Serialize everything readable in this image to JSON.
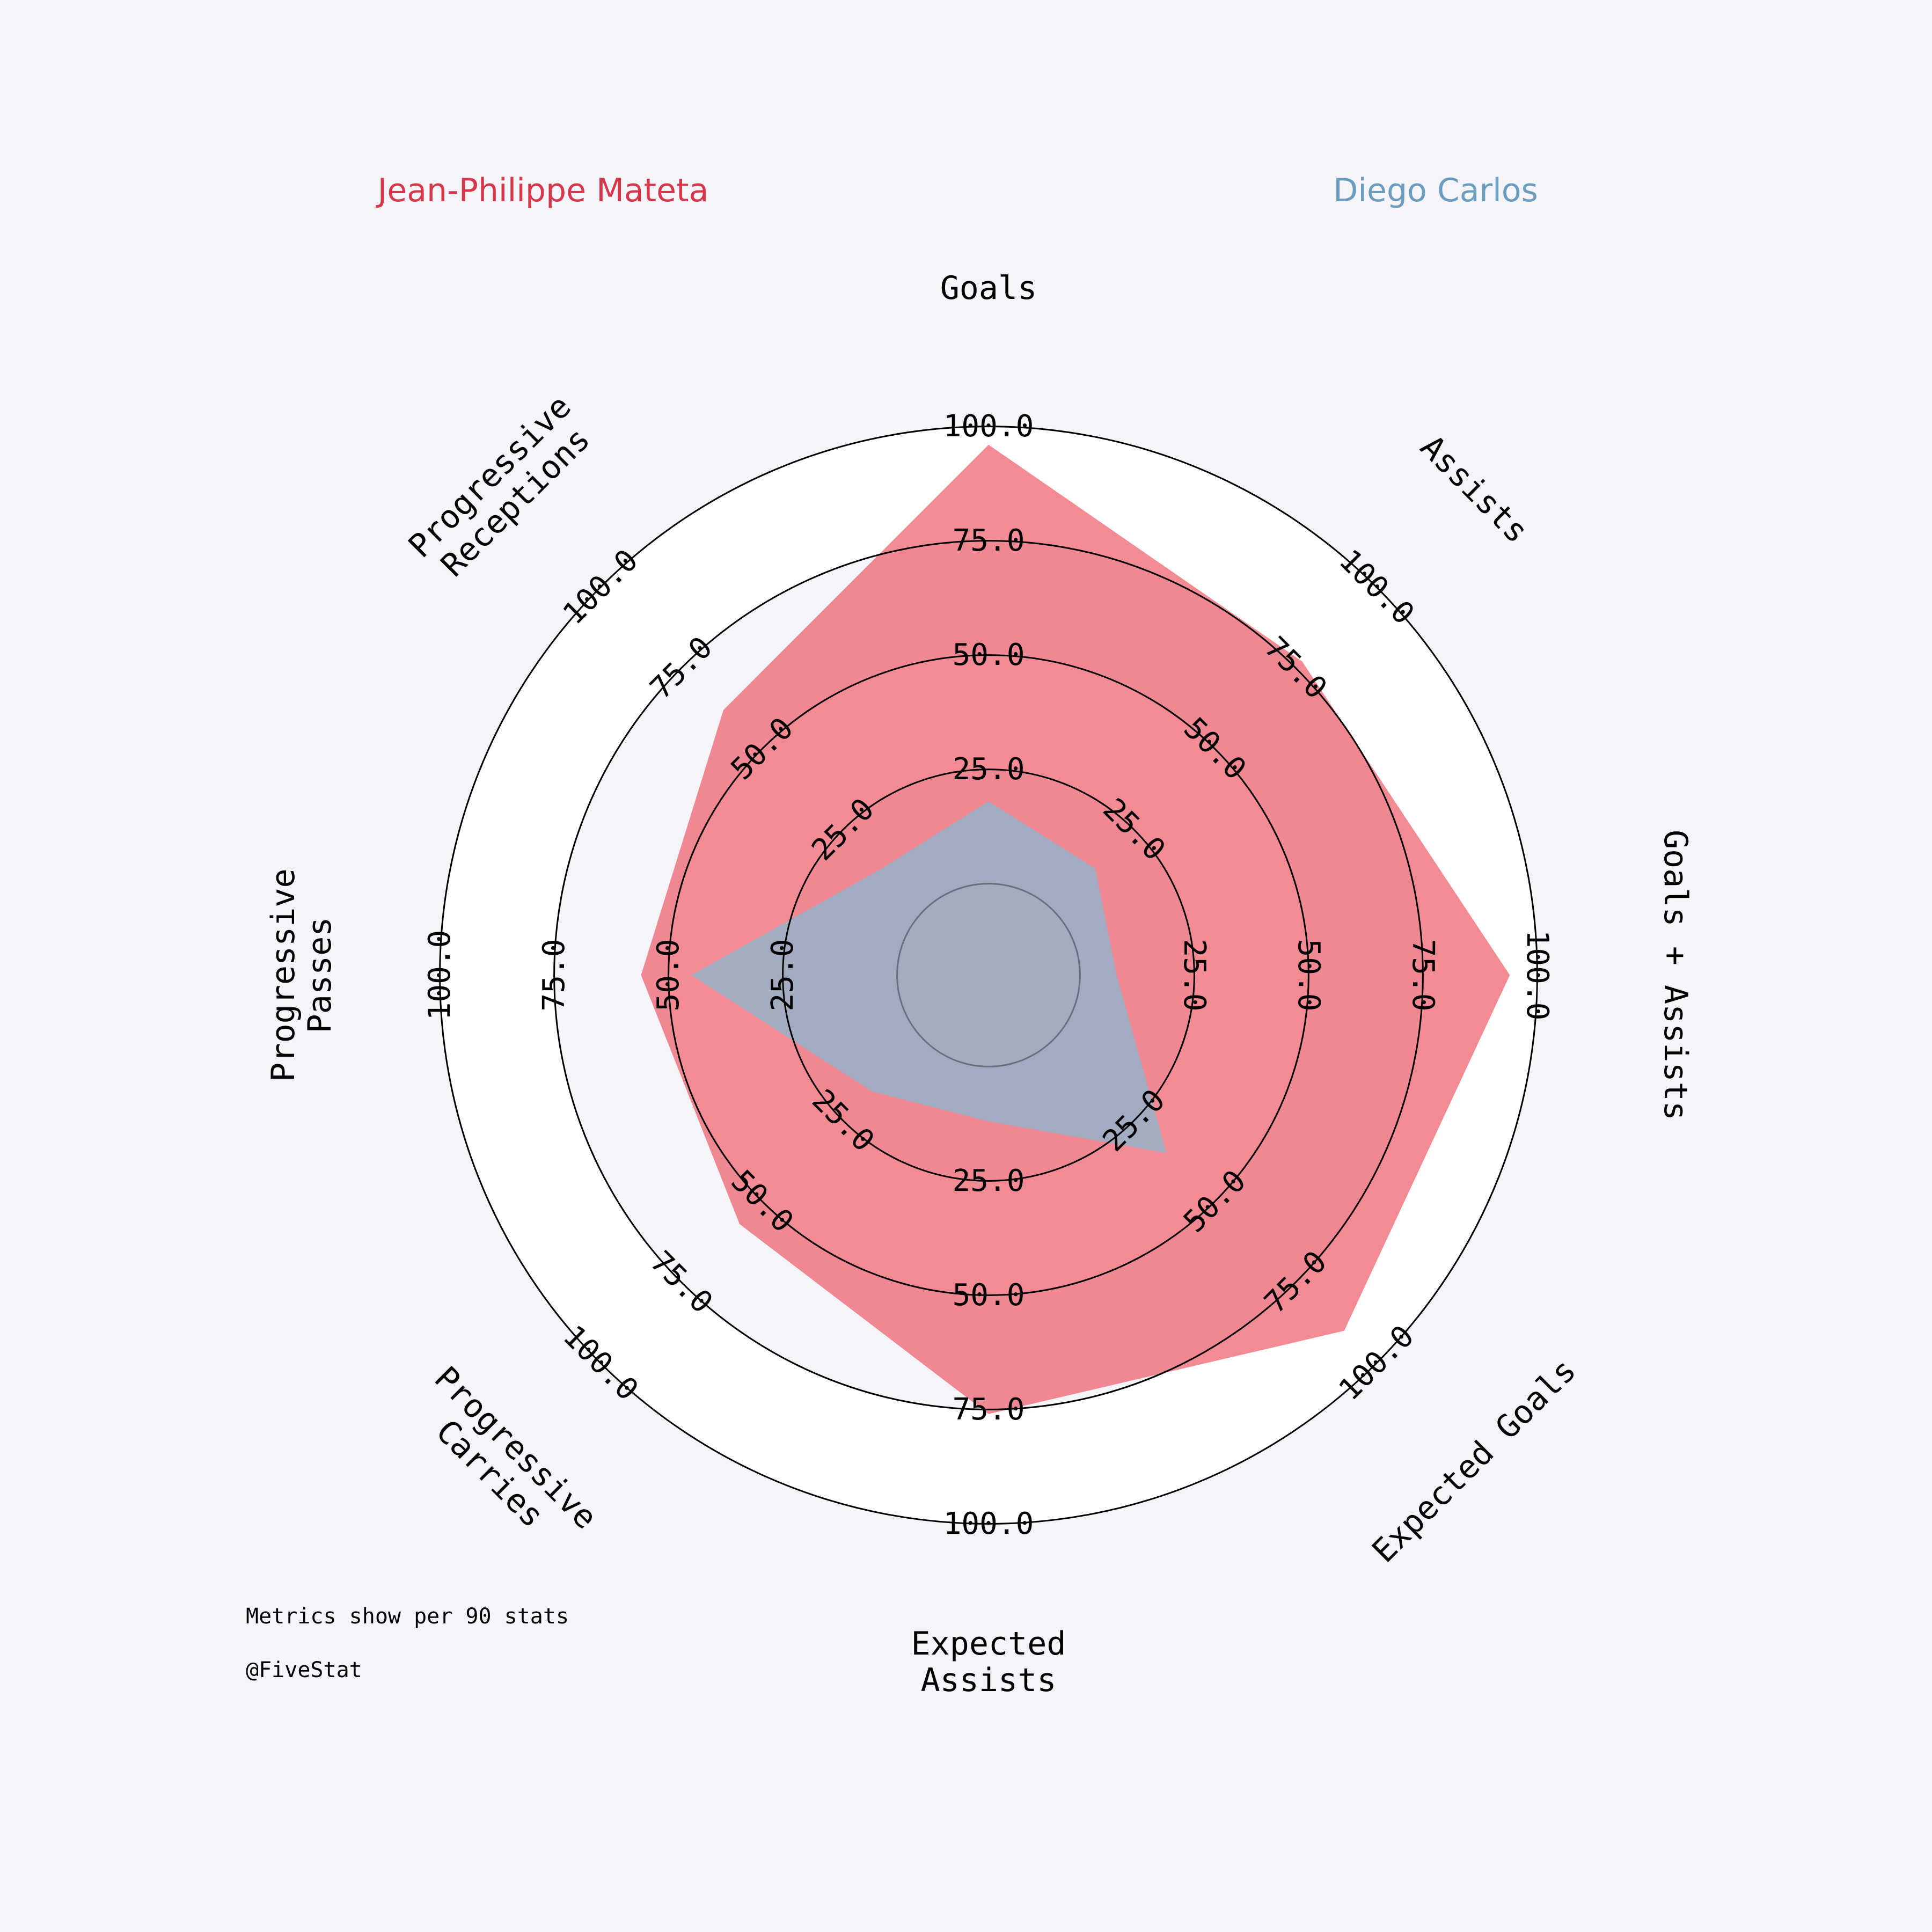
{
  "chart_data": {
    "type": "radar",
    "title": "",
    "categories": [
      "Goals",
      "Assists",
      "Goals + Assists",
      "Expected Goals",
      "Expected\nAssists",
      "Progressive\nCarries",
      "Progressive\nPasses",
      "Progressive\nReceptions"
    ],
    "series": [
      {
        "name": "Jean-Philippe Mateta",
        "color": "#d7374a",
        "fill": "#ee6470",
        "values": [
          96,
          77,
          94,
          90,
          76,
          57,
          56,
          62
        ]
      },
      {
        "name": "Diego Carlos",
        "color": "#6a9dbe",
        "fill": "#8ab7cf",
        "values": [
          18,
          13,
          8,
          35,
          12,
          16,
          45,
          13
        ]
      }
    ],
    "range": [
      -20,
      100
    ],
    "ring_values": [
      25,
      50,
      75,
      100
    ],
    "tick_labels": [
      "25.0",
      "50.0",
      "75.0",
      "100.0"
    ],
    "grid": true
  },
  "footer": {
    "note": "Metrics show per 90 stats",
    "credit": "@FiveStat"
  }
}
